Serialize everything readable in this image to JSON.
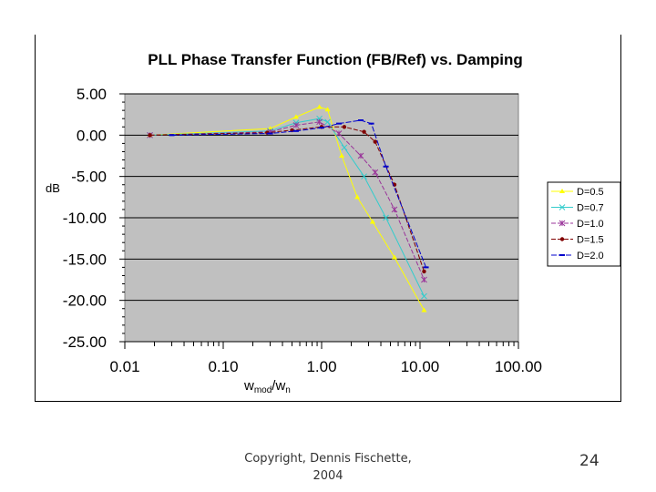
{
  "slide": {
    "footer_line1": "Copyright, Dennis Fischette,",
    "footer_line2": "2004",
    "page_number": "24"
  },
  "chart_data": {
    "type": "line",
    "title": "PLL Phase Transfer Function (FB/Ref) vs. Damping",
    "ylabel": "dB",
    "xlabel_main": "w",
    "xlabel_sub": "mod",
    "xlabel_slash": "/w",
    "xlabel_sub2": "n",
    "x_scale": "log",
    "xlim": [
      0.01,
      100
    ],
    "ylim": [
      -25,
      5
    ],
    "x_ticks": [
      0.01,
      0.1,
      1,
      10,
      100
    ],
    "x_tick_labels": [
      "0.01",
      "0.10",
      "1.00",
      "10.00",
      "100.00"
    ],
    "y_ticks": [
      5,
      0,
      -5,
      -10,
      -15,
      -20,
      -25
    ],
    "y_tick_labels": [
      "5.00",
      "0.00",
      "-5.00",
      "-10.00",
      "-15.00",
      "-20.00",
      "-25.00"
    ],
    "grid": "horizontal",
    "plot_background": "#c0c0c0",
    "legend_position": "right",
    "series": [
      {
        "name": "D=0.5",
        "color": "#ffff00",
        "marker": "triangle",
        "x": [
          0.018,
          0.3,
          0.55,
          0.95,
          1.15,
          1.6,
          2.3,
          3.3,
          5.5,
          11
        ],
        "y": [
          0.0,
          0.8,
          2.2,
          3.4,
          3.1,
          -2.5,
          -7.5,
          -10.5,
          -14.8,
          -21.2
        ]
      },
      {
        "name": "D=0.7",
        "color": "#33cccc",
        "marker": "x",
        "x": [
          0.018,
          0.3,
          0.55,
          0.95,
          1.15,
          1.7,
          2.7,
          4.5,
          11
        ],
        "y": [
          0.0,
          0.5,
          1.5,
          2.0,
          1.6,
          -1.5,
          -5.0,
          -10.0,
          -19.5
        ]
      },
      {
        "name": "D=1.0",
        "color": "#993399",
        "marker": "star",
        "x": [
          0.018,
          0.3,
          0.55,
          0.95,
          1.5,
          2.5,
          3.5,
          5.5,
          11
        ],
        "y": [
          0.0,
          0.4,
          1.2,
          1.6,
          0.2,
          -2.5,
          -4.5,
          -9.0,
          -17.5
        ]
      },
      {
        "name": "D=1.5",
        "color": "#800000",
        "marker": "circle",
        "x": [
          0.018,
          0.28,
          0.5,
          1.0,
          1.7,
          2.7,
          3.5,
          5.5,
          11
        ],
        "y": [
          0.0,
          0.3,
          0.6,
          1.0,
          1.0,
          0.4,
          -0.8,
          -6.0,
          -16.5
        ]
      },
      {
        "name": "D=2.0",
        "color": "#0000cc",
        "marker": "dash",
        "x": [
          0.03,
          0.3,
          0.55,
          1.0,
          1.5,
          2.5,
          3.2,
          4.5,
          11.5
        ],
        "y": [
          0.0,
          0.2,
          0.5,
          0.9,
          1.4,
          1.8,
          1.4,
          -3.8,
          -16.0
        ]
      }
    ]
  }
}
